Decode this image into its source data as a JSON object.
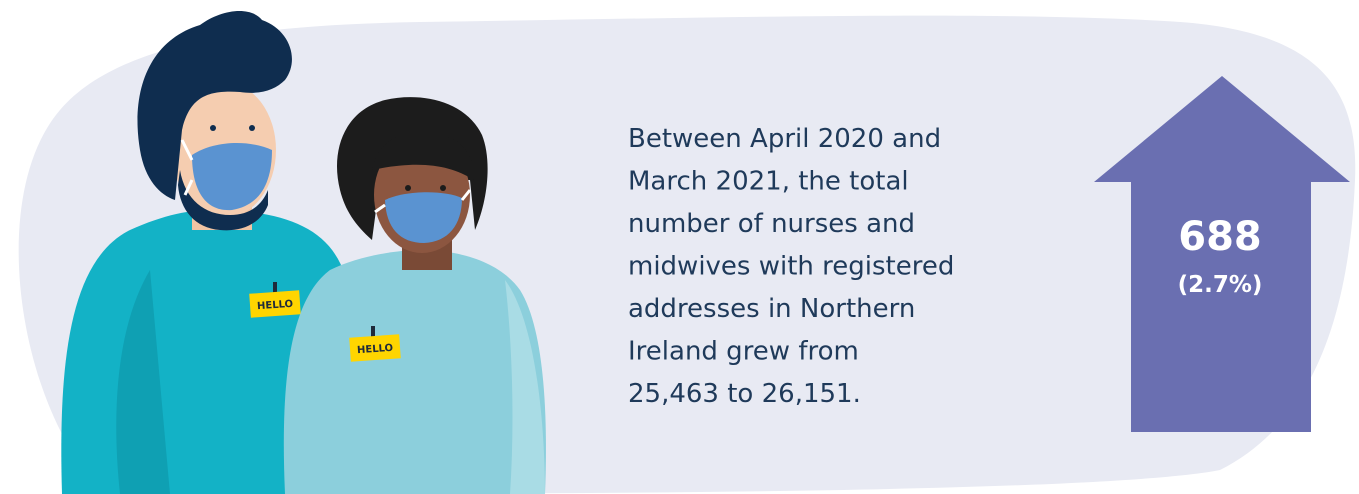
{
  "text": {
    "lines": [
      "Between April 2020 and",
      "March 2021, the total",
      "number of nurses and",
      "midwives with registered",
      "addresses in Northern",
      "Ireland grew from",
      "25,463 to 26,151."
    ]
  },
  "arrow": {
    "value": "688",
    "percent": "(2.7%)"
  },
  "badges": [
    "HELLO",
    "HELLO"
  ]
}
